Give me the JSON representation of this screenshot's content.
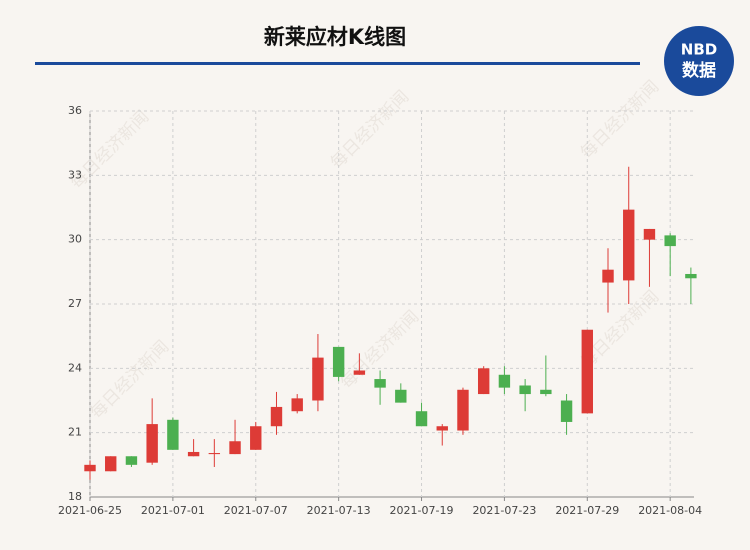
{
  "chart_data": {
    "type": "candlestick",
    "title": "新莱应材K线图",
    "logo": {
      "top": "NBD",
      "bottom": "数据"
    },
    "watermark": "每日经济新闻",
    "categories": [
      "2021-06-25",
      null,
      null,
      null,
      "2021-07-01",
      null,
      null,
      null,
      "2021-07-07",
      null,
      null,
      null,
      "2021-07-13",
      null,
      null,
      null,
      "2021-07-19",
      null,
      null,
      null,
      "2021-07-23",
      null,
      null,
      null,
      "2021-07-29",
      null,
      null,
      null,
      "2021-08-04",
      null
    ],
    "open": [
      19.2,
      19.2,
      19.9,
      19.6,
      21.6,
      19.9,
      20.0,
      20.0,
      20.2,
      21.3,
      22.0,
      22.5,
      25.0,
      23.7,
      23.5,
      23.0,
      22.0,
      21.1,
      21.1,
      22.8,
      23.7,
      23.2,
      23.0,
      22.5,
      21.9,
      28.0,
      28.1,
      30.0,
      30.2,
      28.4
    ],
    "high": [
      19.7,
      19.9,
      19.9,
      22.6,
      21.7,
      20.7,
      20.7,
      21.6,
      21.5,
      22.9,
      22.8,
      25.6,
      25.0,
      24.7,
      23.9,
      23.3,
      22.4,
      21.4,
      23.1,
      24.1,
      24.1,
      23.5,
      24.6,
      22.8,
      25.8,
      29.6,
      33.4,
      30.5,
      30.3,
      28.7
    ],
    "low": [
      18.8,
      19.2,
      19.4,
      19.5,
      20.2,
      19.9,
      19.4,
      20.0,
      20.2,
      20.9,
      21.9,
      22.0,
      23.4,
      23.7,
      22.3,
      22.4,
      21.3,
      20.4,
      20.9,
      22.8,
      22.8,
      22.0,
      22.7,
      20.9,
      21.9,
      26.6,
      27.0,
      27.8,
      28.3,
      27.0
    ],
    "close": [
      19.5,
      19.9,
      19.5,
      21.4,
      20.2,
      20.1,
      20.05,
      20.6,
      21.3,
      22.2,
      22.6,
      24.5,
      23.6,
      23.9,
      23.1,
      22.4,
      21.3,
      21.3,
      23.0,
      24.0,
      23.1,
      22.8,
      22.8,
      21.5,
      25.8,
      28.6,
      31.4,
      30.5,
      29.7,
      28.2
    ],
    "up_color": "#dd3b36",
    "down_color": "#4caf50",
    "ylim": [
      18,
      36
    ],
    "yticks": [
      18,
      21,
      24,
      27,
      30,
      33,
      36
    ],
    "grid": true
  }
}
